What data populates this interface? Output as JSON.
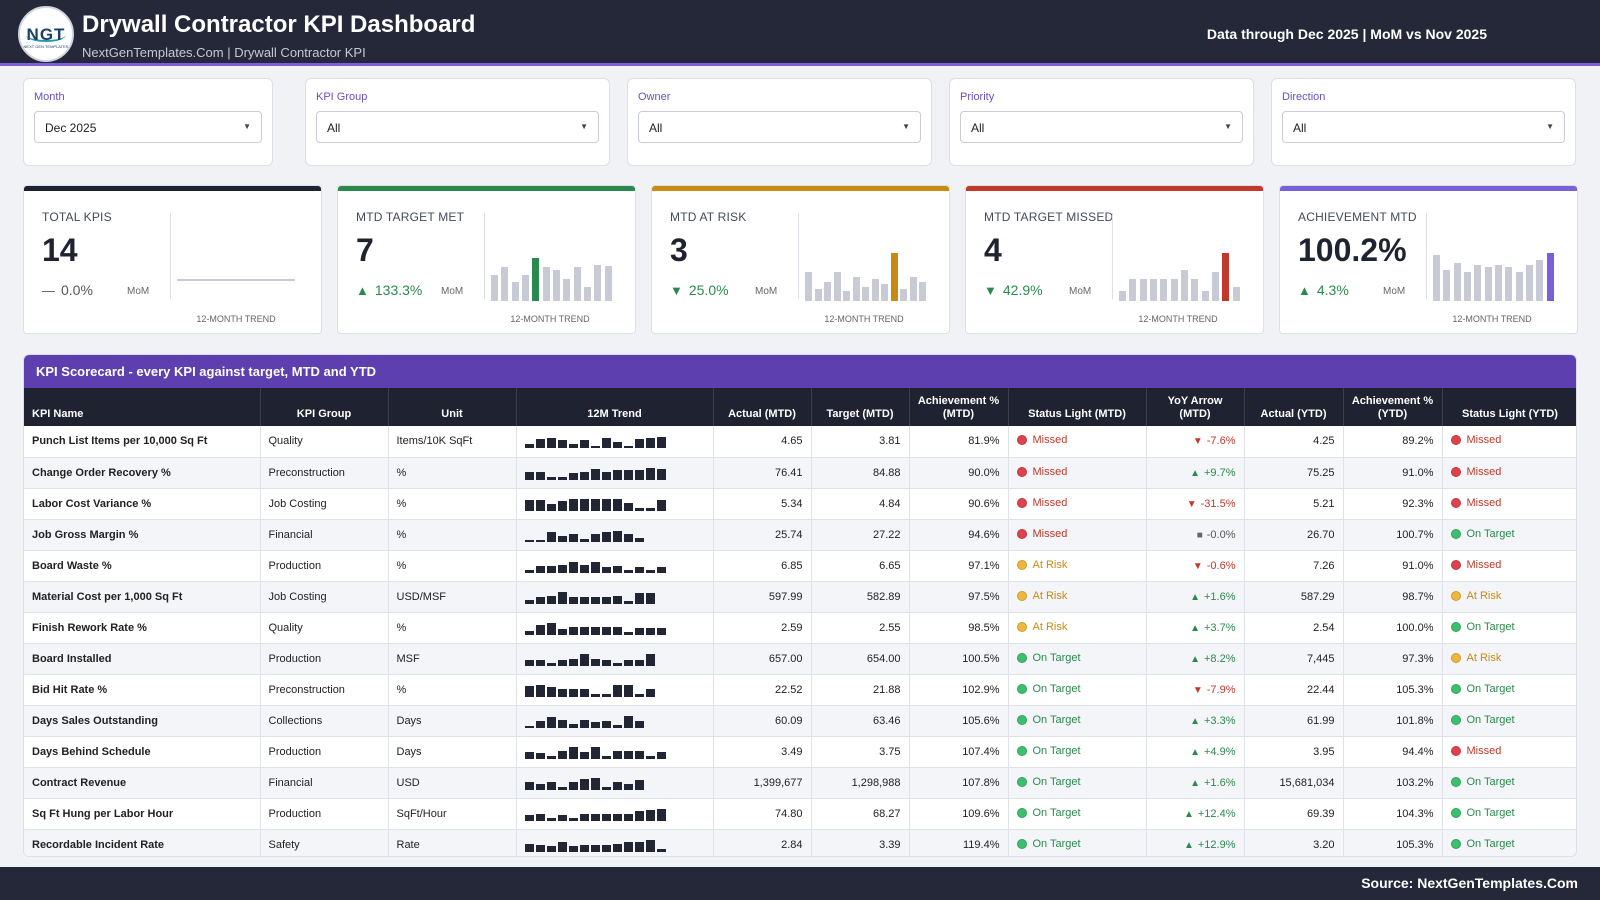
{
  "header": {
    "logo_text": "NGT",
    "logo_sub": "NEXT GEN TEMPLATES",
    "title": "Drywall Contractor KPI Dashboard",
    "subtitle": "NextGenTemplates.Com | Drywall Contractor KPI",
    "data_through": "Data through Dec 2025 | MoM vs Nov 2025"
  },
  "filters": [
    {
      "label": "Month",
      "value": "Dec 2025"
    },
    {
      "label": "KPI Group",
      "value": "All"
    },
    {
      "label": "Owner",
      "value": "All"
    },
    {
      "label": "Priority",
      "value": "All"
    },
    {
      "label": "Direction",
      "value": "All"
    }
  ],
  "cards": [
    {
      "label": "TOTAL KPIS",
      "value": "14",
      "delta": "0.0%",
      "arrow": "—",
      "mom": "MoM",
      "trend_label": "12-MONTH TREND",
      "accent": "#1f2230",
      "bars": [],
      "highlight": "#1f2230"
    },
    {
      "label": "MTD TARGET MET",
      "value": "7",
      "delta": "133.3%",
      "arrow": "▲",
      "mom": "MoM",
      "trend_label": "12-MONTH TREND",
      "accent": "#2a8a4e",
      "bars": [
        0.55,
        0.7,
        0.4,
        0.55,
        0.9,
        0.7,
        0.65,
        0.45,
        0.7,
        0.3,
        0.75,
        0.72
      ],
      "highlight_index": 4,
      "highlight": "#2a8a4e"
    },
    {
      "label": "MTD AT RISK",
      "value": "3",
      "delta": "25.0%",
      "arrow": "▼",
      "mom": "MoM",
      "trend_label": "12-MONTH TREND",
      "accent": "#c98a12",
      "bars": [
        0.6,
        0.25,
        0.4,
        0.6,
        0.2,
        0.5,
        0.3,
        0.45,
        0.35,
        1.0,
        0.25,
        0.5,
        0.4
      ],
      "highlight_index": 9,
      "highlight": "#c98a12"
    },
    {
      "label": "MTD TARGET MISSED",
      "value": "4",
      "delta": "42.9%",
      "arrow": "▼",
      "mom": "MoM",
      "trend_label": "12-MONTH TREND",
      "accent": "#c0392b",
      "bars": [
        0.2,
        0.45,
        0.45,
        0.45,
        0.45,
        0.45,
        0.65,
        0.45,
        0.2,
        0.6,
        1.0,
        0.3
      ],
      "highlight_index": 10,
      "highlight": "#c0392b"
    },
    {
      "label": "ACHIEVEMENT MTD",
      "value": "100.2%",
      "delta": "4.3%",
      "arrow": "▲",
      "mom": "MoM",
      "trend_label": "12-MONTH TREND",
      "accent": "#7b5fd6",
      "bars": [
        0.95,
        0.65,
        0.8,
        0.6,
        0.75,
        0.7,
        0.75,
        0.7,
        0.6,
        0.75,
        0.85,
        1.0
      ],
      "highlight_index": 11,
      "highlight": "#7b5fd6"
    }
  ],
  "scorecard": {
    "title": "KPI Scorecard - every KPI against target, MTD and YTD",
    "columns": [
      "KPI Name",
      "KPI Group",
      "Unit",
      "12M Trend",
      "Actual (MTD)",
      "Target (MTD)",
      "Achievement % (MTD)",
      "Status Light (MTD)",
      "YoY Arrow (MTD)",
      "Actual (YTD)",
      "Achievement % (YTD)",
      "Status Light (YTD)"
    ],
    "colors": {
      "missed": "#e0424c",
      "risk": "#f0b83a",
      "ok": "#3cbf6e"
    },
    "rows": [
      {
        "name": "Punch List Items per 10,000 Sq Ft",
        "group": "Quality",
        "unit": "Items/10K SqFt",
        "trend": [
          0.3,
          0.7,
          0.8,
          0.6,
          0.3,
          0.6,
          0.2,
          0.8,
          0.5,
          0.2,
          0.7,
          0.8,
          0.9
        ],
        "actual_mtd": "4.65",
        "target_mtd": "3.81",
        "ach_mtd": "81.9%",
        "status_mtd": "Missed",
        "yoy_dir": "down",
        "yoy": "-7.6%",
        "actual_ytd": "4.25",
        "ach_ytd": "89.2%",
        "status_ytd": "Missed"
      },
      {
        "name": "Change Order Recovery %",
        "group": "Preconstruction",
        "unit": "%",
        "trend": [
          0.6,
          0.6,
          0.2,
          0.2,
          0.5,
          0.6,
          0.8,
          0.6,
          0.7,
          0.7,
          0.7,
          0.9,
          0.8
        ],
        "actual_mtd": "76.41",
        "target_mtd": "84.88",
        "ach_mtd": "90.0%",
        "status_mtd": "Missed",
        "yoy_dir": "up",
        "yoy": "+9.7%",
        "actual_ytd": "75.25",
        "ach_ytd": "91.0%",
        "status_ytd": "Missed"
      },
      {
        "name": "Labor Cost Variance %",
        "group": "Job Costing",
        "unit": "%",
        "trend": [
          0.8,
          0.8,
          0.5,
          0.7,
          0.9,
          0.9,
          0.9,
          0.9,
          0.9,
          0.6,
          0.2,
          0.2,
          0.8
        ],
        "actual_mtd": "5.34",
        "target_mtd": "4.84",
        "ach_mtd": "90.6%",
        "status_mtd": "Missed",
        "yoy_dir": "down",
        "yoy": "-31.5%",
        "actual_ytd": "5.21",
        "ach_ytd": "92.3%",
        "status_ytd": "Missed"
      },
      {
        "name": "Job Gross Margin %",
        "group": "Financial",
        "unit": "%",
        "trend": [
          0.1,
          0.1,
          0.7,
          0.4,
          0.6,
          0.2,
          0.6,
          0.7,
          0.8,
          0.6,
          0.3
        ],
        "actual_mtd": "25.74",
        "target_mtd": "27.22",
        "ach_mtd": "94.6%",
        "status_mtd": "Missed",
        "yoy_dir": "flat",
        "yoy": "-0.0%",
        "actual_ytd": "26.70",
        "ach_ytd": "100.7%",
        "status_ytd": "On Target"
      },
      {
        "name": "Board Waste %",
        "group": "Production",
        "unit": "%",
        "trend": [
          0.2,
          0.5,
          0.5,
          0.6,
          0.8,
          0.6,
          0.8,
          0.4,
          0.5,
          0.2,
          0.4,
          0.2,
          0.4
        ],
        "actual_mtd": "6.85",
        "target_mtd": "6.65",
        "ach_mtd": "97.1%",
        "status_mtd": "At Risk",
        "yoy_dir": "down",
        "yoy": "-0.6%",
        "actual_ytd": "7.26",
        "ach_ytd": "91.0%",
        "status_ytd": "Missed"
      },
      {
        "name": "Material Cost per 1,000 Sq Ft",
        "group": "Job Costing",
        "unit": "USD/MSF",
        "trend": [
          0.3,
          0.5,
          0.6,
          0.9,
          0.5,
          0.5,
          0.5,
          0.5,
          0.6,
          0.2,
          0.8,
          0.8
        ],
        "actual_mtd": "597.99",
        "target_mtd": "582.89",
        "ach_mtd": "97.5%",
        "status_mtd": "At Risk",
        "yoy_dir": "up",
        "yoy": "+1.6%",
        "actual_ytd": "587.29",
        "ach_ytd": "98.7%",
        "status_ytd": "At Risk"
      },
      {
        "name": "Finish Rework Rate %",
        "group": "Quality",
        "unit": "%",
        "trend": [
          0.3,
          0.7,
          0.9,
          0.4,
          0.6,
          0.6,
          0.6,
          0.6,
          0.6,
          0.2,
          0.5,
          0.5,
          0.5
        ],
        "actual_mtd": "2.59",
        "target_mtd": "2.55",
        "ach_mtd": "98.5%",
        "status_mtd": "At Risk",
        "yoy_dir": "up",
        "yoy": "+3.7%",
        "actual_ytd": "2.54",
        "ach_ytd": "100.0%",
        "status_ytd": "On Target"
      },
      {
        "name": "Board Installed",
        "group": "Production",
        "unit": "MSF",
        "trend": [
          0.4,
          0.4,
          0.2,
          0.4,
          0.5,
          0.9,
          0.5,
          0.4,
          0.2,
          0.4,
          0.4,
          0.9
        ],
        "actual_mtd": "657.00",
        "target_mtd": "654.00",
        "ach_mtd": "100.5%",
        "status_mtd": "On Target",
        "yoy_dir": "up",
        "yoy": "+8.2%",
        "actual_ytd": "7,445",
        "ach_ytd": "97.3%",
        "status_ytd": "At Risk"
      },
      {
        "name": "Bid Hit Rate %",
        "group": "Preconstruction",
        "unit": "%",
        "trend": [
          0.8,
          0.9,
          0.7,
          0.6,
          0.6,
          0.6,
          0.2,
          0.2,
          0.9,
          0.9,
          0.2,
          0.6
        ],
        "actual_mtd": "22.52",
        "target_mtd": "21.88",
        "ach_mtd": "102.9%",
        "status_mtd": "On Target",
        "yoy_dir": "down",
        "yoy": "-7.9%",
        "actual_ytd": "22.44",
        "ach_ytd": "105.3%",
        "status_ytd": "On Target"
      },
      {
        "name": "Days Sales Outstanding",
        "group": "Collections",
        "unit": "Days",
        "trend": [
          0.1,
          0.5,
          0.8,
          0.6,
          0.3,
          0.6,
          0.4,
          0.5,
          0.2,
          0.9,
          0.5
        ],
        "actual_mtd": "60.09",
        "target_mtd": "63.46",
        "ach_mtd": "105.6%",
        "status_mtd": "On Target",
        "yoy_dir": "up",
        "yoy": "+3.3%",
        "actual_ytd": "61.99",
        "ach_ytd": "101.8%",
        "status_ytd": "On Target"
      },
      {
        "name": "Days Behind Schedule",
        "group": "Production",
        "unit": "Days",
        "trend": [
          0.5,
          0.4,
          0.2,
          0.6,
          0.9,
          0.5,
          0.9,
          0.2,
          0.6,
          0.6,
          0.6,
          0.2,
          0.5
        ],
        "actual_mtd": "3.49",
        "target_mtd": "3.75",
        "ach_mtd": "107.4%",
        "status_mtd": "On Target",
        "yoy_dir": "up",
        "yoy": "+4.9%",
        "actual_ytd": "3.95",
        "ach_ytd": "94.4%",
        "status_ytd": "Missed"
      },
      {
        "name": "Contract Revenue",
        "group": "Financial",
        "unit": "USD",
        "trend": [
          0.6,
          0.4,
          0.6,
          0.2,
          0.6,
          0.8,
          0.9,
          0.2,
          0.6,
          0.4,
          0.7
        ],
        "actual_mtd": "1,399,677",
        "target_mtd": "1,298,988",
        "ach_mtd": "107.8%",
        "status_mtd": "On Target",
        "yoy_dir": "up",
        "yoy": "+1.6%",
        "actual_ytd": "15,681,034",
        "ach_ytd": "103.2%",
        "status_ytd": "On Target"
      },
      {
        "name": "Sq Ft Hung per Labor Hour",
        "group": "Production",
        "unit": "SqFt/Hour",
        "trend": [
          0.4,
          0.5,
          0.2,
          0.4,
          0.2,
          0.5,
          0.5,
          0.5,
          0.5,
          0.5,
          0.7,
          0.8,
          0.9
        ],
        "actual_mtd": "74.80",
        "target_mtd": "68.27",
        "ach_mtd": "109.6%",
        "status_mtd": "On Target",
        "yoy_dir": "up",
        "yoy": "+12.4%",
        "actual_ytd": "69.39",
        "ach_ytd": "104.3%",
        "status_ytd": "On Target"
      },
      {
        "name": "Recordable Incident Rate",
        "group": "Safety",
        "unit": "Rate",
        "trend": [
          0.6,
          0.5,
          0.4,
          0.7,
          0.4,
          0.5,
          0.5,
          0.5,
          0.6,
          0.7,
          0.7,
          0.9,
          0.2
        ],
        "actual_mtd": "2.84",
        "target_mtd": "3.39",
        "ach_mtd": "119.4%",
        "status_mtd": "On Target",
        "yoy_dir": "up",
        "yoy": "+12.9%",
        "actual_ytd": "3.20",
        "ach_ytd": "105.3%",
        "status_ytd": "On Target"
      }
    ]
  },
  "footer": {
    "source": "Source: NextGenTemplates.Com"
  }
}
